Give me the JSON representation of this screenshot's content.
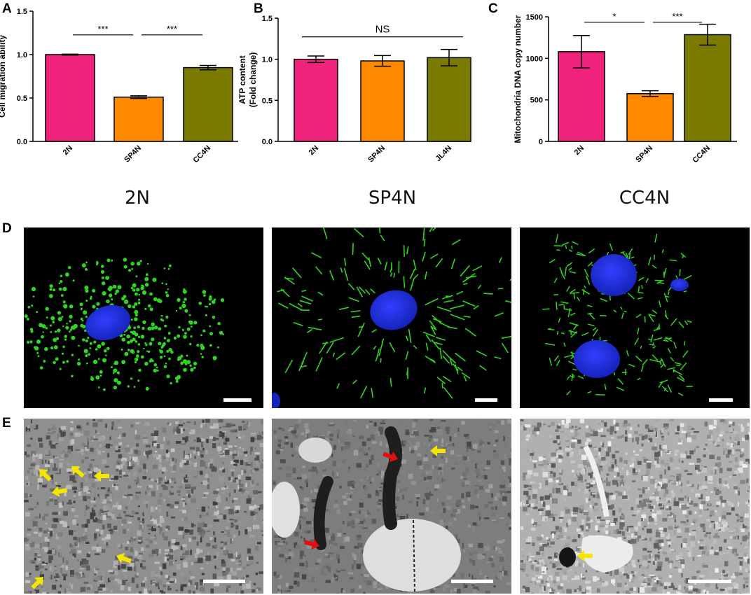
{
  "panels": {
    "A": "A",
    "B": "B",
    "C": "C",
    "D": "D",
    "E": "E"
  },
  "column_titles": [
    "2N",
    "SP4N",
    "CC4N"
  ],
  "colors": {
    "2N": "#f0237c",
    "SP4N": "#ff8a00",
    "third": "#7a7a00",
    "nucleus": "#1f2bd6",
    "mito": "#2fd61f",
    "arrow_yellow": "#f5e500",
    "arrow_red": "#e01010"
  },
  "chart_data": [
    {
      "type": "bar",
      "panel": "A",
      "categories": [
        "2N",
        "SP4N",
        "CC4N"
      ],
      "values": [
        1.0,
        0.51,
        0.85
      ],
      "errors": [
        0.005,
        0.015,
        0.025
      ],
      "ylabel": "Cell migration ability",
      "ylim": [
        0,
        1.5
      ],
      "yticks": [
        "0.0",
        "0.5",
        "1.0",
        "1.5"
      ],
      "ytick_values": [
        0,
        0.5,
        1.0,
        1.5
      ],
      "significance": [
        {
          "from": 0,
          "to": 1,
          "label": "***",
          "y": 1.3
        },
        {
          "from": 1,
          "to": 2,
          "label": "***",
          "y": 1.3
        }
      ]
    },
    {
      "type": "bar",
      "panel": "B",
      "categories": [
        "2N",
        "SP4N",
        "JL4N"
      ],
      "values": [
        1.0,
        0.98,
        1.02
      ],
      "errors": [
        0.04,
        0.065,
        0.1
      ],
      "ylabel": "ATP content (Fold change)",
      "ylabel_lines": [
        "ATP content",
        "(Fold change)"
      ],
      "ylim": [
        0,
        1.5
      ],
      "yticks": [
        "0.0",
        "0.5",
        "1.0",
        "1.5"
      ],
      "ytick_values": [
        0,
        0.5,
        1.0,
        1.5
      ],
      "significance": [
        {
          "from": 0,
          "to": 2,
          "label": "NS",
          "y": 1.35
        }
      ]
    },
    {
      "type": "bar",
      "panel": "C",
      "categories": [
        "2N",
        "SP4N",
        "CC4N"
      ],
      "values": [
        1080,
        575,
        1285
      ],
      "errors": [
        195,
        35,
        125
      ],
      "ylabel": "Mitochondria DNA copy number",
      "ylim": [
        0,
        1500
      ],
      "yticks": [
        "0",
        "500",
        "1000",
        "1500"
      ],
      "ytick_values": [
        0,
        500,
        1000,
        1500
      ],
      "significance": [
        {
          "from": 0,
          "to": 1,
          "label": "*",
          "y": 1510
        },
        {
          "from": 1,
          "to": 2,
          "label": "***",
          "y": 1510
        }
      ]
    }
  ]
}
